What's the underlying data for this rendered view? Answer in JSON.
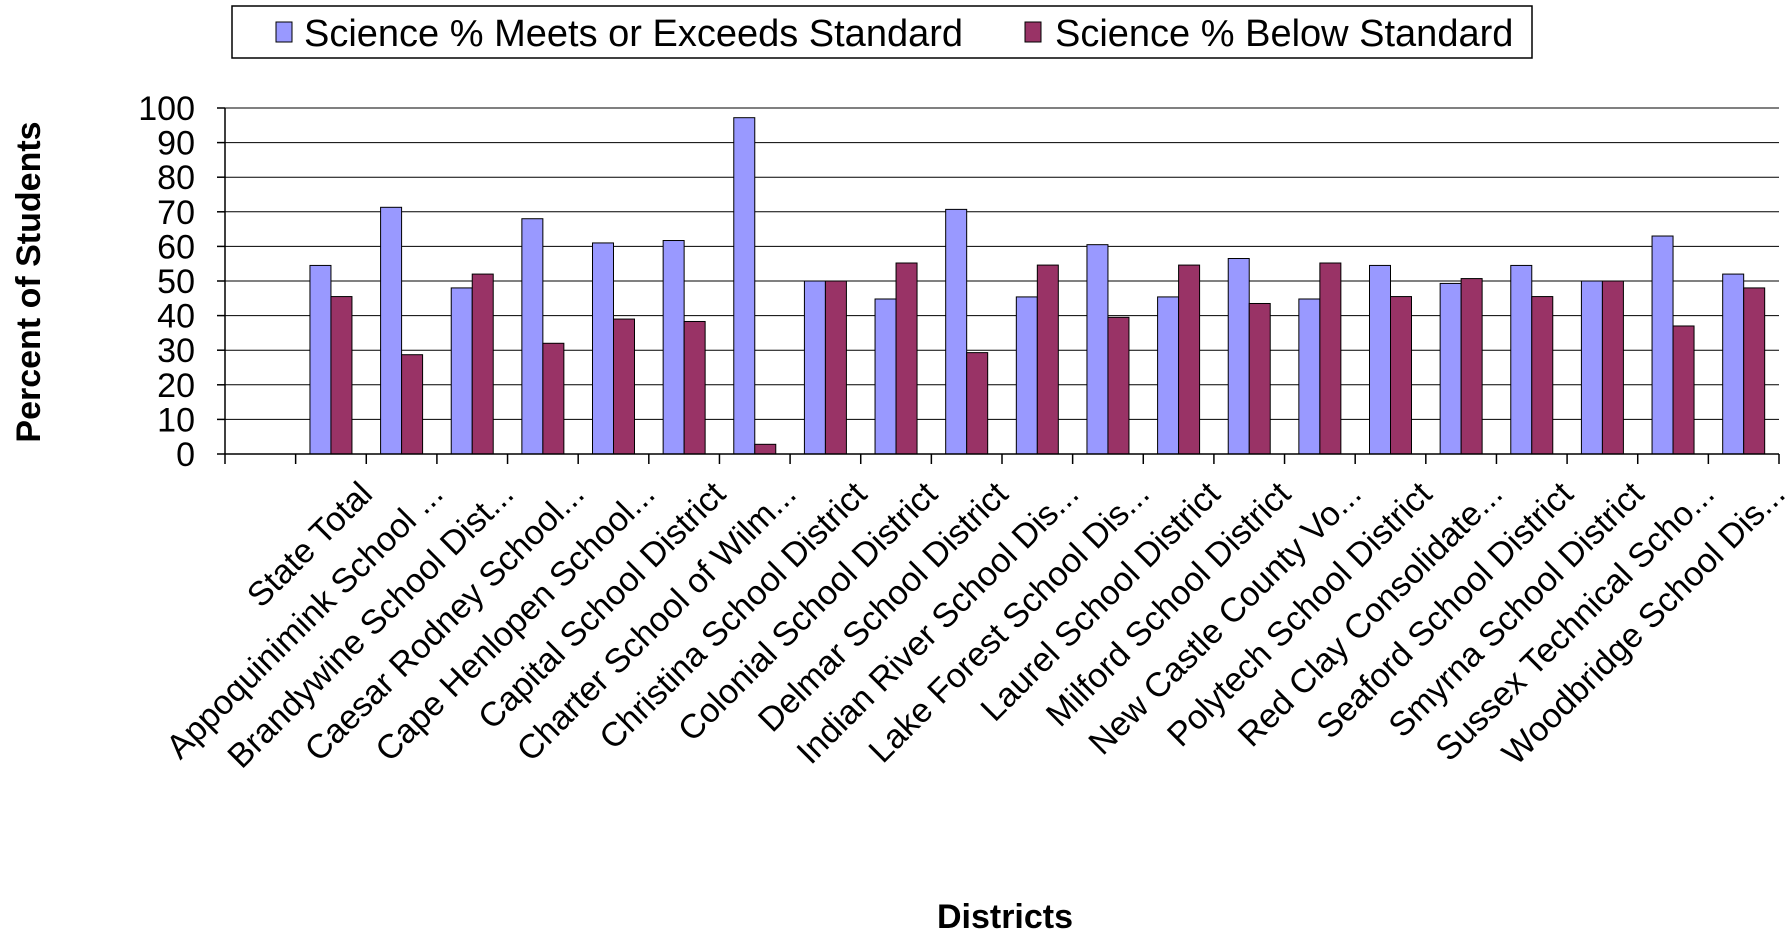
{
  "chart_data": {
    "type": "bar",
    "title": "",
    "xlabel": "Districts",
    "ylabel": "Percent of Students",
    "ylim": [
      0,
      100
    ],
    "yticks": [
      0,
      10,
      20,
      30,
      40,
      50,
      60,
      70,
      80,
      90,
      100
    ],
    "grid": true,
    "legend_position": "top",
    "categories": [
      "State Total",
      "Appoquinimink School ...",
      "Brandywine School Dist...",
      "Caesar Rodney School...",
      "Cape Henlopen School...",
      "Capital School District",
      "Charter School of Wilm...",
      "Christina School District",
      "Colonial School District",
      "Delmar School District",
      "Indian River School Dis...",
      "Lake Forest School Dis...",
      "Laurel School District",
      "Milford School District",
      "New Castle County Vo...",
      "Polytech School District",
      "Red Clay Consolidate...",
      "Seaford School District",
      "Smyrna School District",
      "Sussex Technical Scho...",
      "Woodbridge School Dis..."
    ],
    "series": [
      {
        "name": "Science % Meets or Exceeds Standard",
        "color": "#9999ff",
        "values": [
          54.5,
          71.3,
          48,
          68,
          61,
          61.7,
          97.2,
          50,
          44.8,
          70.7,
          45.4,
          60.5,
          45.4,
          56.5,
          44.8,
          54.5,
          49.3,
          54.5,
          50,
          63,
          52
        ]
      },
      {
        "name": "Science % Below Standard",
        "color": "#993366",
        "values": [
          45.5,
          28.7,
          52,
          32,
          39,
          38.3,
          2.8,
          50,
          55.2,
          29.3,
          54.6,
          39.5,
          54.6,
          43.5,
          55.2,
          45.5,
          50.7,
          45.5,
          50,
          37,
          48
        ]
      }
    ]
  }
}
